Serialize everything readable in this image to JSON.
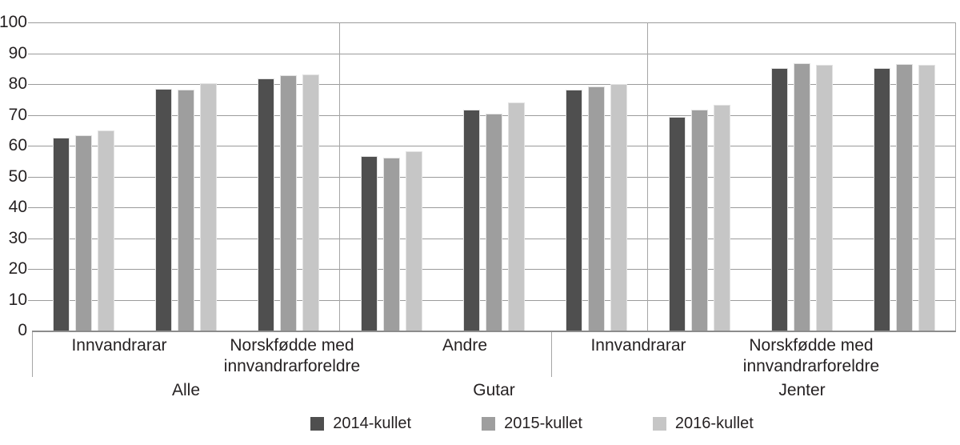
{
  "chart_data": {
    "type": "bar",
    "title": "",
    "xlabel": "",
    "ylabel": "",
    "ylim": [
      0,
      100
    ],
    "y_ticks": [
      0,
      10,
      20,
      30,
      40,
      50,
      60,
      70,
      80,
      90,
      100
    ],
    "grid": "horizontal",
    "legend_position": "bottom",
    "series": [
      {
        "name": "2014-kullet",
        "color": "#4f4f4f"
      },
      {
        "name": "2015-kullet",
        "color": "#9e9e9e"
      },
      {
        "name": "2016-kullet",
        "color": "#c6c6c6"
      }
    ],
    "groups": [
      {
        "label": "Alle",
        "categories": [
          {
            "label": "Innvandrarar",
            "values": [
              62.5,
              63.5,
              65.0
            ]
          },
          {
            "label": "Norskfødde med innvandrarforeldre",
            "values": [
              78.4,
              78.1,
              80.2
            ]
          },
          {
            "label": "Andre",
            "values": [
              81.7,
              82.8,
              83.2
            ]
          }
        ]
      },
      {
        "label": "Gutar",
        "categories": [
          {
            "label": "Innvandrarar",
            "values": [
              56.5,
              56.0,
              58.1
            ]
          },
          {
            "label": "Norskfødde med innvandrarforeldre",
            "values": [
              71.6,
              70.4,
              74.0
            ]
          },
          {
            "label": "Andre",
            "values": [
              78.2,
              79.2,
              80.1
            ]
          }
        ]
      },
      {
        "label": "Jenter",
        "categories": [
          {
            "label": "Innvandrarar",
            "values": [
              69.4,
              71.8,
              73.2
            ]
          },
          {
            "label": "Norskfødde med innvandrarforeldre",
            "values": [
              85.3,
              86.7,
              86.2
            ]
          },
          {
            "label": "Andre",
            "values": [
              85.3,
              86.4,
              86.2
            ]
          }
        ]
      }
    ],
    "colors": {
      "gridline": "#9b9b9b",
      "axis": "#8c8c8c",
      "separator": "#a6a6a6",
      "text": "#262223"
    }
  }
}
